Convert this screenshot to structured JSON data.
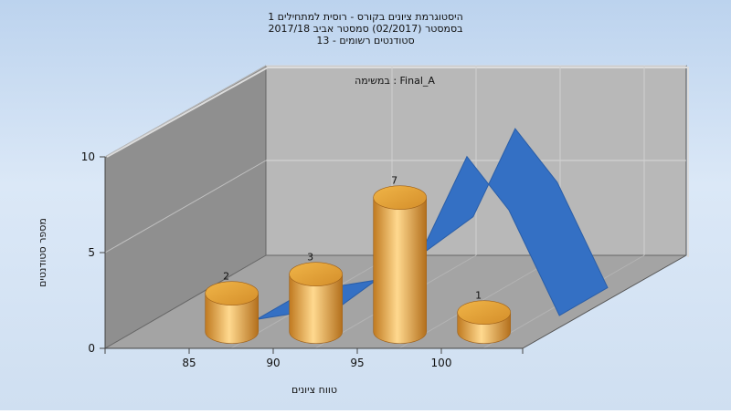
{
  "chart_data": {
    "type": "bar",
    "title_lines": [
      "היסטוגרמת ציונים בקורס - רוסית למתחילים 1",
      "בסמסטר  (02/2017)  סמסטר אביב 2017/18",
      "סטודנטים רשומים - 13"
    ],
    "assignment_label": "במשימה : Final_A",
    "xlabel": "טווח ציונים",
    "ylabel": "מספר סטודנטים",
    "categories": [
      "85",
      "90",
      "95",
      "100"
    ],
    "values": [
      2,
      3,
      7,
      1
    ],
    "ylim": [
      0,
      10
    ],
    "yticks": [
      "0",
      "5",
      "10"
    ],
    "bar_color": "#e8a53c",
    "curve_color": "#3470c4",
    "curve": [
      {
        "x": 85,
        "y": 0.3
      },
      {
        "x": 90,
        "y": 1.0
      },
      {
        "x": 95,
        "y": 4.2
      },
      {
        "x": 97.5,
        "y": 8.8
      },
      {
        "x": 100,
        "y": 6.0
      },
      {
        "x": 103,
        "y": 0.5
      }
    ]
  }
}
